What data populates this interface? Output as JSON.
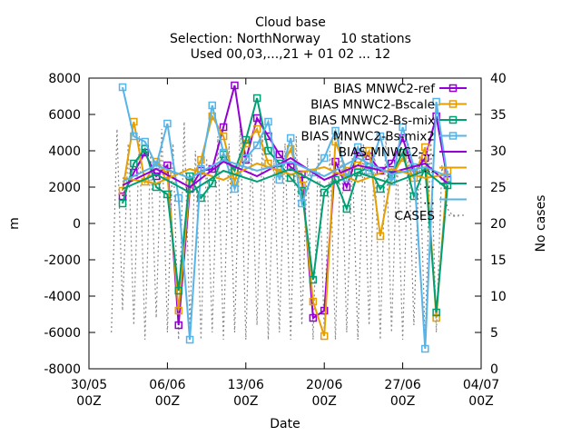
{
  "chart_data": {
    "type": "line",
    "title": "Cloud base",
    "subtitle_lines": [
      "Selection: NorthNorway     10 stations",
      "Used 00,03,...,21 + 01 02 ... 12"
    ],
    "xlabel": "Date",
    "ylabel": "m",
    "y2label": "No cases",
    "ylim": [
      -8000,
      8000
    ],
    "y2lim": [
      0,
      40
    ],
    "xlim": [
      "2022-05-30T00",
      "2022-07-04T00"
    ],
    "x_ticks": [
      {
        "value": "2022-05-30T00",
        "label": [
          "30/05",
          "00Z"
        ]
      },
      {
        "value": "2022-06-06T00",
        "label": [
          "06/06",
          "00Z"
        ]
      },
      {
        "value": "2022-06-13T00",
        "label": [
          "13/06",
          "00Z"
        ]
      },
      {
        "value": "2022-06-20T00",
        "label": [
          "20/06",
          "00Z"
        ]
      },
      {
        "value": "2022-06-27T00",
        "label": [
          "27/06",
          "00Z"
        ]
      },
      {
        "value": "2022-07-04T00",
        "label": [
          "04/07",
          "00Z"
        ]
      }
    ],
    "y_ticks": [
      "-8000",
      "-6000",
      "-4000",
      "-2000",
      "0",
      "2000",
      "4000",
      "6000",
      "8000"
    ],
    "y2_ticks": [
      "0",
      "5",
      "10",
      "15",
      "20",
      "25",
      "30",
      "35",
      "40"
    ],
    "grid": false,
    "legend_placement": "top-right",
    "series": [
      {
        "name": "BIAS MNWC2-ref",
        "color": "#9400d3",
        "marker": "square",
        "axis": "y",
        "samples": [
          [
            "2022-06-02T00",
            1500
          ],
          [
            "2022-06-03T00",
            2800
          ],
          [
            "2022-06-04T00",
            3900
          ],
          [
            "2022-06-05T00",
            2600
          ],
          [
            "2022-06-06T00",
            3200
          ],
          [
            "2022-06-07T00",
            -5600
          ],
          [
            "2022-06-08T00",
            1900
          ],
          [
            "2022-06-09T00",
            2900
          ],
          [
            "2022-06-10T00",
            3000
          ],
          [
            "2022-06-11T00",
            5300
          ],
          [
            "2022-06-12T00",
            7600
          ],
          [
            "2022-06-13T00",
            3500
          ],
          [
            "2022-06-14T00",
            5800
          ],
          [
            "2022-06-15T00",
            4800
          ],
          [
            "2022-06-16T00",
            3800
          ],
          [
            "2022-06-17T00",
            3100
          ],
          [
            "2022-06-18T00",
            2700
          ],
          [
            "2022-06-19T00",
            -5200
          ],
          [
            "2022-06-20T00",
            -4800
          ],
          [
            "2022-06-21T00",
            3400
          ],
          [
            "2022-06-22T00",
            2000
          ],
          [
            "2022-06-23T00",
            3900
          ],
          [
            "2022-06-24T00",
            3700
          ],
          [
            "2022-06-25T00",
            2900
          ],
          [
            "2022-06-26T00",
            3300
          ],
          [
            "2022-06-27T00",
            4700
          ],
          [
            "2022-06-28T00",
            2800
          ],
          [
            "2022-06-29T00",
            3600
          ],
          [
            "2022-06-30T00",
            5900
          ],
          [
            "2022-07-01T00",
            2400
          ]
        ]
      },
      {
        "name": "BIAS MNWC2-Bscale",
        "color": "#e69f00",
        "marker": "square",
        "axis": "y",
        "samples": [
          [
            "2022-06-02T00",
            1800
          ],
          [
            "2022-06-03T00",
            5600
          ],
          [
            "2022-06-04T00",
            2300
          ],
          [
            "2022-06-05T00",
            3400
          ],
          [
            "2022-06-06T00",
            2700
          ],
          [
            "2022-06-07T00",
            -4800
          ],
          [
            "2022-06-08T00",
            2200
          ],
          [
            "2022-06-09T00",
            3500
          ],
          [
            "2022-06-10T00",
            5900
          ],
          [
            "2022-06-11T00",
            4800
          ],
          [
            "2022-06-12T00",
            2300
          ],
          [
            "2022-06-13T00",
            4400
          ],
          [
            "2022-06-14T00",
            5200
          ],
          [
            "2022-06-15T00",
            3300
          ],
          [
            "2022-06-16T00",
            2800
          ],
          [
            "2022-06-17T00",
            4100
          ],
          [
            "2022-06-18T00",
            2100
          ],
          [
            "2022-06-19T00",
            -4300
          ],
          [
            "2022-06-20T00",
            -6200
          ],
          [
            "2022-06-21T00",
            4500
          ],
          [
            "2022-06-22T00",
            2900
          ],
          [
            "2022-06-23T00",
            3200
          ],
          [
            "2022-06-24T00",
            4000
          ],
          [
            "2022-06-25T00",
            -700
          ],
          [
            "2022-06-26T00",
            2600
          ],
          [
            "2022-06-27T00",
            3600
          ],
          [
            "2022-06-28T00",
            2500
          ],
          [
            "2022-06-29T00",
            4200
          ],
          [
            "2022-06-30T00",
            -5200
          ],
          [
            "2022-07-01T00",
            2900
          ]
        ]
      },
      {
        "name": "BIAS MNWC2-Bs-mix",
        "color": "#009e73",
        "marker": "square",
        "axis": "y",
        "samples": [
          [
            "2022-06-02T00",
            1100
          ],
          [
            "2022-06-03T00",
            3300
          ],
          [
            "2022-06-04T00",
            4100
          ],
          [
            "2022-06-05T00",
            2000
          ],
          [
            "2022-06-06T00",
            1600
          ],
          [
            "2022-06-07T00",
            -3700
          ],
          [
            "2022-06-08T00",
            2600
          ],
          [
            "2022-06-09T00",
            1400
          ],
          [
            "2022-06-10T00",
            2200
          ],
          [
            "2022-06-11T00",
            3800
          ],
          [
            "2022-06-12T00",
            2900
          ],
          [
            "2022-06-13T00",
            4600
          ],
          [
            "2022-06-14T00",
            6900
          ],
          [
            "2022-06-15T00",
            4000
          ],
          [
            "2022-06-16T00",
            3300
          ],
          [
            "2022-06-17T00",
            2500
          ],
          [
            "2022-06-18T00",
            1800
          ],
          [
            "2022-06-19T00",
            -3100
          ],
          [
            "2022-06-20T00",
            1700
          ],
          [
            "2022-06-21T00",
            2400
          ],
          [
            "2022-06-22T00",
            800
          ],
          [
            "2022-06-23T00",
            2800
          ],
          [
            "2022-06-24T00",
            3100
          ],
          [
            "2022-06-25T00",
            1900
          ],
          [
            "2022-06-26T00",
            2700
          ],
          [
            "2022-06-27T00",
            3900
          ],
          [
            "2022-06-28T00",
            1500
          ],
          [
            "2022-06-29T00",
            3100
          ],
          [
            "2022-06-30T00",
            -4900
          ],
          [
            "2022-07-01T00",
            2100
          ]
        ]
      },
      {
        "name": "BIAS MNWC2-Bs-mix2",
        "color": "#56b4e9",
        "marker": "square",
        "axis": "y",
        "samples": [
          [
            "2022-06-02T00",
            7500
          ],
          [
            "2022-06-03T00",
            4800
          ],
          [
            "2022-06-04T00",
            4500
          ],
          [
            "2022-06-05T00",
            3200
          ],
          [
            "2022-06-06T00",
            5500
          ],
          [
            "2022-06-07T00",
            1400
          ],
          [
            "2022-06-08T00",
            -6400
          ],
          [
            "2022-06-09T00",
            3000
          ],
          [
            "2022-06-10T00",
            6500
          ],
          [
            "2022-06-11T00",
            3900
          ],
          [
            "2022-06-12T00",
            1900
          ],
          [
            "2022-06-13T00",
            3600
          ],
          [
            "2022-06-14T00",
            4300
          ],
          [
            "2022-06-15T00",
            5600
          ],
          [
            "2022-06-16T00",
            2400
          ],
          [
            "2022-06-17T00",
            4700
          ],
          [
            "2022-06-18T00",
            1100
          ],
          [
            "2022-06-19T00",
            2800
          ],
          [
            "2022-06-20T00",
            3600
          ],
          [
            "2022-06-21T00",
            5100
          ],
          [
            "2022-06-22T00",
            2500
          ],
          [
            "2022-06-23T00",
            4200
          ],
          [
            "2022-06-24T00",
            2900
          ],
          [
            "2022-06-25T00",
            4800
          ],
          [
            "2022-06-26T00",
            2300
          ],
          [
            "2022-06-27T00",
            5300
          ],
          [
            "2022-06-28T00",
            3100
          ],
          [
            "2022-06-29T00",
            -6900
          ],
          [
            "2022-06-30T00",
            6700
          ],
          [
            "2022-07-01T00",
            2500
          ]
        ]
      },
      {
        "name": "BIAS MNWC2-...",
        "color": "#9400d3",
        "marker": "line",
        "axis": "y",
        "samples": [
          [
            "2022-06-02T00",
            2100
          ],
          [
            "2022-06-05T00",
            3000
          ],
          [
            "2022-06-08T00",
            2000
          ],
          [
            "2022-06-11T00",
            3400
          ],
          [
            "2022-06-14T00",
            2600
          ],
          [
            "2022-06-17T00",
            3600
          ],
          [
            "2022-06-20T00",
            2400
          ],
          [
            "2022-06-23T00",
            3200
          ],
          [
            "2022-06-26T00",
            2800
          ],
          [
            "2022-06-29T00",
            3300
          ],
          [
            "2022-07-01T00",
            2200
          ]
        ]
      },
      {
        "name": "...",
        "color": "#e69f00",
        "marker": "line",
        "axis": "y",
        "samples": [
          [
            "2022-06-02T00",
            2500
          ],
          [
            "2022-06-05T00",
            2200
          ],
          [
            "2022-06-08T00",
            3000
          ],
          [
            "2022-06-11T00",
            2400
          ],
          [
            "2022-06-14T00",
            3300
          ],
          [
            "2022-06-17T00",
            2700
          ],
          [
            "2022-06-20T00",
            3100
          ],
          [
            "2022-06-23T00",
            2300
          ],
          [
            "2022-06-26T00",
            3000
          ],
          [
            "2022-06-29T00",
            2500
          ],
          [
            "2022-07-01T00",
            2700
          ]
        ]
      },
      {
        "name": "...",
        "color": "#009e73",
        "marker": "line",
        "axis": "y",
        "samples": [
          [
            "2022-06-02T00",
            1900
          ],
          [
            "2022-06-05T00",
            2700
          ],
          [
            "2022-06-08T00",
            1700
          ],
          [
            "2022-06-11T00",
            2900
          ],
          [
            "2022-06-14T00",
            2300
          ],
          [
            "2022-06-17T00",
            3000
          ],
          [
            "2022-06-20T00",
            2000
          ],
          [
            "2022-06-23T00",
            2800
          ],
          [
            "2022-06-26T00",
            2200
          ],
          [
            "2022-06-29T00",
            2900
          ],
          [
            "2022-07-01T00",
            1900
          ]
        ]
      },
      {
        "name": "...",
        "color": "#56b4e9",
        "marker": "line",
        "axis": "y",
        "samples": [
          [
            "2022-06-02T00",
            2300
          ],
          [
            "2022-06-05T00",
            3200
          ],
          [
            "2022-06-08T00",
            2500
          ],
          [
            "2022-06-11T00",
            3500
          ],
          [
            "2022-06-14T00",
            2900
          ],
          [
            "2022-06-17T00",
            3400
          ],
          [
            "2022-06-20T00",
            2600
          ],
          [
            "2022-06-23T00",
            3600
          ],
          [
            "2022-06-26T00",
            2700
          ],
          [
            "2022-06-29T00",
            3100
          ],
          [
            "2022-07-01T00",
            2600
          ]
        ]
      },
      {
        "name": "CASES",
        "color": "#888888",
        "marker": "dotted",
        "axis": "y2",
        "samples": [
          [
            "2022-06-01T00",
            5
          ],
          [
            "2022-06-01T12",
            33
          ],
          [
            "2022-06-02T00",
            8
          ],
          [
            "2022-06-02T12",
            31
          ],
          [
            "2022-06-03T00",
            6
          ],
          [
            "2022-06-03T12",
            32
          ],
          [
            "2022-06-04T00",
            4
          ],
          [
            "2022-06-04T12",
            30
          ],
          [
            "2022-06-05T00",
            7
          ],
          [
            "2022-06-05T12",
            33
          ],
          [
            "2022-06-06T00",
            5
          ],
          [
            "2022-06-06T12",
            31
          ],
          [
            "2022-06-07T00",
            4
          ],
          [
            "2022-06-07T12",
            34
          ],
          [
            "2022-06-08T00",
            6
          ],
          [
            "2022-06-08T12",
            30
          ],
          [
            "2022-06-09T00",
            4
          ],
          [
            "2022-06-09T12",
            29
          ],
          [
            "2022-06-10T00",
            5
          ],
          [
            "2022-06-10T12",
            32
          ],
          [
            "2022-06-11T00",
            4
          ],
          [
            "2022-06-11T12",
            31
          ],
          [
            "2022-06-12T00",
            5
          ],
          [
            "2022-06-12T12",
            34
          ],
          [
            "2022-06-13T00",
            4
          ],
          [
            "2022-06-13T12",
            30
          ],
          [
            "2022-06-14T00",
            6
          ],
          [
            "2022-06-14T12",
            32
          ],
          [
            "2022-06-15T00",
            4
          ],
          [
            "2022-06-15T12",
            29
          ],
          [
            "2022-06-16T00",
            5
          ],
          [
            "2022-06-16T12",
            31
          ],
          [
            "2022-06-17T00",
            4
          ],
          [
            "2022-06-17T12",
            32
          ],
          [
            "2022-06-18T00",
            6
          ],
          [
            "2022-06-18T12",
            29
          ],
          [
            "2022-06-19T00",
            4
          ],
          [
            "2022-06-19T12",
            31
          ],
          [
            "2022-06-20T00",
            5
          ],
          [
            "2022-06-20T12",
            30
          ],
          [
            "2022-06-21T00",
            4
          ],
          [
            "2022-06-21T12",
            32
          ],
          [
            "2022-06-22T00",
            5
          ],
          [
            "2022-06-22T12",
            29
          ],
          [
            "2022-06-23T00",
            4
          ],
          [
            "2022-06-23T12",
            31
          ],
          [
            "2022-06-24T00",
            6
          ],
          [
            "2022-06-24T12",
            30
          ],
          [
            "2022-06-25T00",
            4
          ],
          [
            "2022-06-25T12",
            32
          ],
          [
            "2022-06-26T00",
            5
          ],
          [
            "2022-06-26T12",
            29
          ],
          [
            "2022-06-27T00",
            4
          ],
          [
            "2022-06-27T12",
            31
          ],
          [
            "2022-06-28T00",
            6
          ],
          [
            "2022-06-28T12",
            30
          ],
          [
            "2022-06-29T00",
            4
          ],
          [
            "2022-06-29T12",
            32
          ],
          [
            "2022-06-30T00",
            5
          ],
          [
            "2022-06-30T12",
            28
          ],
          [
            "2022-07-01T00",
            22
          ],
          [
            "2022-07-01T12",
            21
          ],
          [
            "2022-07-02T00",
            21
          ]
        ]
      }
    ]
  }
}
